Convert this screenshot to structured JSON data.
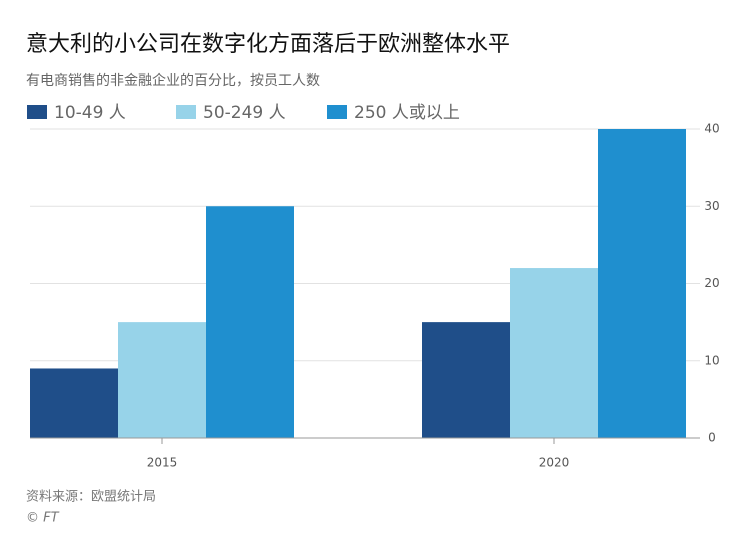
{
  "chart_data": {
    "type": "bar",
    "title": "意大利的小公司在数字化方面落后于欧洲整体水平",
    "subtitle": "有电商销售的非金融企业的百分比，按员工人数",
    "categories": [
      "2015",
      "2020"
    ],
    "series": [
      {
        "name": "10-49 人",
        "color": "#1f4e89",
        "values": [
          9,
          15
        ]
      },
      {
        "name": "50-249 人",
        "color": "#97d3e9",
        "values": [
          15,
          22
        ]
      },
      {
        "name": "250 人或以上",
        "color": "#1f8fcf",
        "values": [
          30,
          40
        ]
      }
    ],
    "ylim": [
      0,
      40
    ],
    "yticks": [
      0,
      10,
      20,
      30,
      40
    ],
    "grid": true,
    "y_axis_side": "right",
    "source": "资料来源：欧盟统计局",
    "credit": "© FT"
  }
}
